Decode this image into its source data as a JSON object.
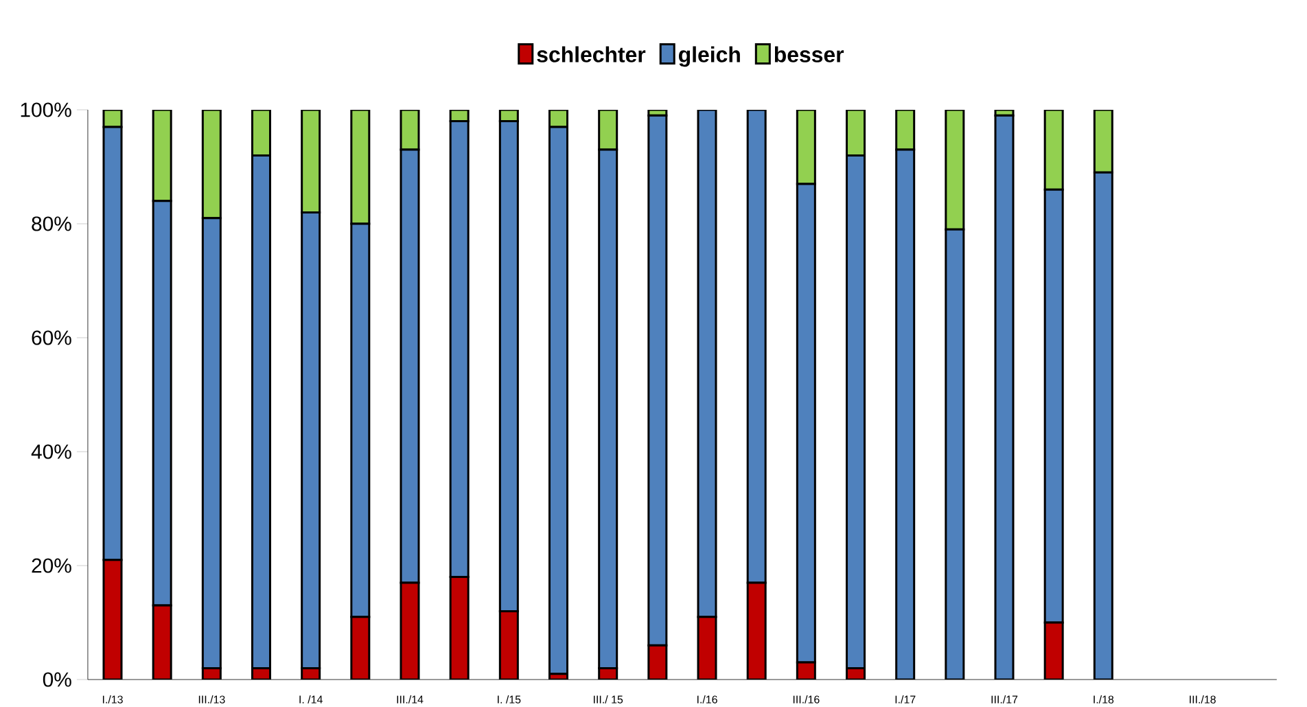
{
  "chart_data": {
    "type": "bar",
    "stacked": true,
    "legend": "top",
    "grid": false,
    "categories": [
      "I./13",
      null,
      "III./13",
      null,
      "I. /14",
      null,
      "III./14",
      null,
      "I. /15",
      null,
      "III./ 15",
      null,
      "I./16",
      null,
      "III./16",
      null,
      "I./17",
      null,
      "III./17",
      null,
      "I./18",
      null,
      "III./18",
      null
    ],
    "series": [
      {
        "name": "schlechter",
        "color": "#c00000",
        "values": [
          21,
          13,
          2,
          2,
          2,
          11,
          17,
          18,
          12,
          1,
          2,
          6,
          11,
          17,
          3,
          2,
          0,
          0,
          0,
          10,
          0,
          null,
          null,
          null
        ]
      },
      {
        "name": "gleich",
        "color": "#4f81bd",
        "values": [
          76,
          71,
          79,
          90,
          80,
          69,
          76,
          80,
          86,
          96,
          91,
          93,
          89,
          83,
          84,
          90,
          93,
          79,
          99,
          76,
          89,
          null,
          null,
          null
        ]
      },
      {
        "name": "besser",
        "color": "#92d050",
        "values": [
          3,
          16,
          19,
          8,
          18,
          20,
          7,
          2,
          2,
          3,
          7,
          1,
          0,
          0,
          13,
          8,
          7,
          21,
          1,
          14,
          11,
          null,
          null,
          null
        ]
      }
    ],
    "ylim": [
      0,
      100
    ],
    "yticks": [
      {
        "value": 0,
        "label": "0%"
      },
      {
        "value": 20,
        "label": "20%"
      },
      {
        "value": 40,
        "label": "40%"
      },
      {
        "value": 60,
        "label": "60%"
      },
      {
        "value": 80,
        "label": "80%"
      },
      {
        "value": 100,
        "label": "100%"
      }
    ]
  }
}
